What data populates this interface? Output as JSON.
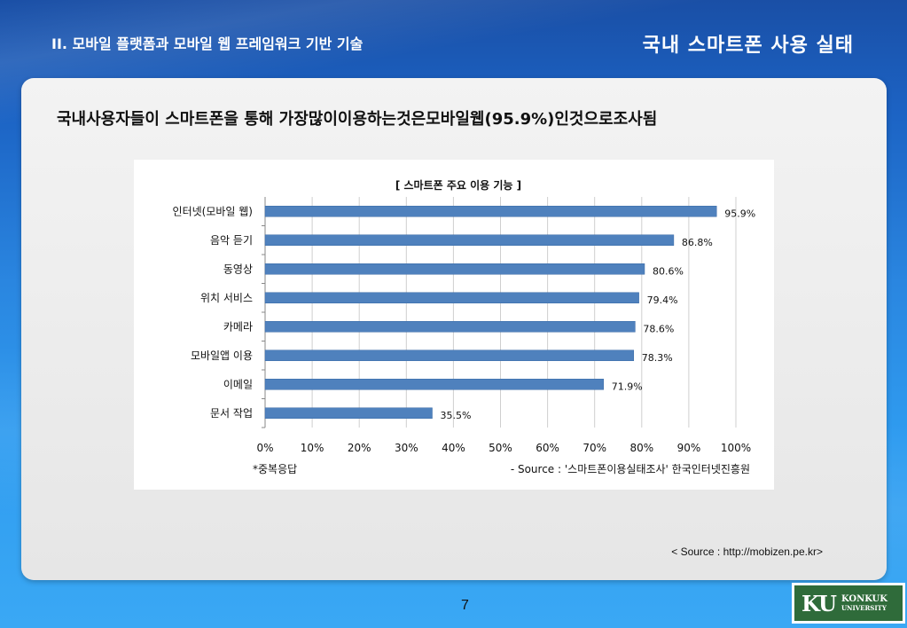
{
  "header": {
    "section": "II. 모바일 플랫폼과 모바일 웹 프레임워크 기반 기술",
    "title": "국내 스마트폰 사용 실태"
  },
  "main": {
    "headline": "국내사용자들이 스마트폰을 통해 가장많이이용하는것은모바일웹(95.9%)인것으로조사됨",
    "source_link": "< Source : http://mobizen.pe.kr>"
  },
  "footer": {
    "page_number": "7",
    "logo_mark": "KU",
    "logo_line1": "KONKUK",
    "logo_line2": "UNIVERSITY"
  },
  "chart_data": {
    "type": "bar",
    "orientation": "horizontal",
    "title": "[ 스마트폰 주요 이용 기능 ]",
    "categories": [
      "인터넷(모바일 웹)",
      "음악 듣기",
      "동영상",
      "위치 서비스",
      "카메라",
      "모바일앱 이용",
      "이메일",
      "문서 작업"
    ],
    "values": [
      95.9,
      86.8,
      80.6,
      79.4,
      78.6,
      78.3,
      71.9,
      35.5
    ],
    "value_labels": [
      "95.9%",
      "86.8%",
      "80.6%",
      "79.4%",
      "78.6%",
      "78.3%",
      "71.9%",
      "35.5%"
    ],
    "xlim": [
      0,
      100
    ],
    "xticks": [
      "0%",
      "10%",
      "20%",
      "30%",
      "40%",
      "50%",
      "60%",
      "70%",
      "80%",
      "90%",
      "100%"
    ],
    "grid": true,
    "note": "*중복응답",
    "source": "- Source : '스마트폰이용실태조사' 한국인터넷진흥원",
    "bar_color": "#4f81bd"
  }
}
